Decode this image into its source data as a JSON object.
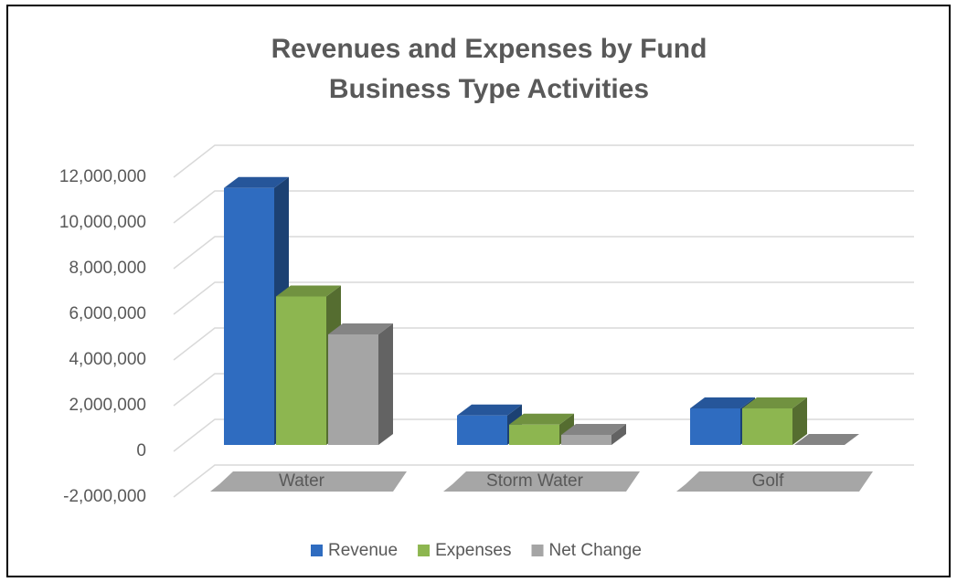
{
  "chart_data": {
    "type": "bar3d",
    "title": "Revenues and Expenses by Fund",
    "subtitle": "Business Type Activities",
    "categories": [
      "Water",
      "Storm Water",
      "Golf"
    ],
    "series": [
      {
        "name": "Revenue",
        "color": "#2f6cc0",
        "values": [
          11250000,
          1290000,
          1600000
        ]
      },
      {
        "name": "Expenses",
        "color": "#8db650",
        "values": [
          6500000,
          890000,
          1600000
        ]
      },
      {
        "name": "Net Change",
        "color": "#a5a5a5",
        "values": [
          4840000,
          440000,
          0
        ]
      }
    ],
    "ylim": [
      -2000000,
      12000000
    ],
    "yticks": [
      {
        "value": -2000000,
        "label": "-2,000,000"
      },
      0,
      {
        "value": 2000000,
        "label": "2,000,000"
      },
      {
        "value": 4000000,
        "label": "4,000,000"
      },
      {
        "value": 6000000,
        "label": "6,000,000"
      },
      {
        "value": 8000000,
        "label": "8,000,000"
      },
      {
        "value": 10000000,
        "label": "10,000,000"
      },
      {
        "value": 12000000,
        "label": "12,000,000"
      }
    ],
    "grid": true,
    "legend": "bottom"
  }
}
